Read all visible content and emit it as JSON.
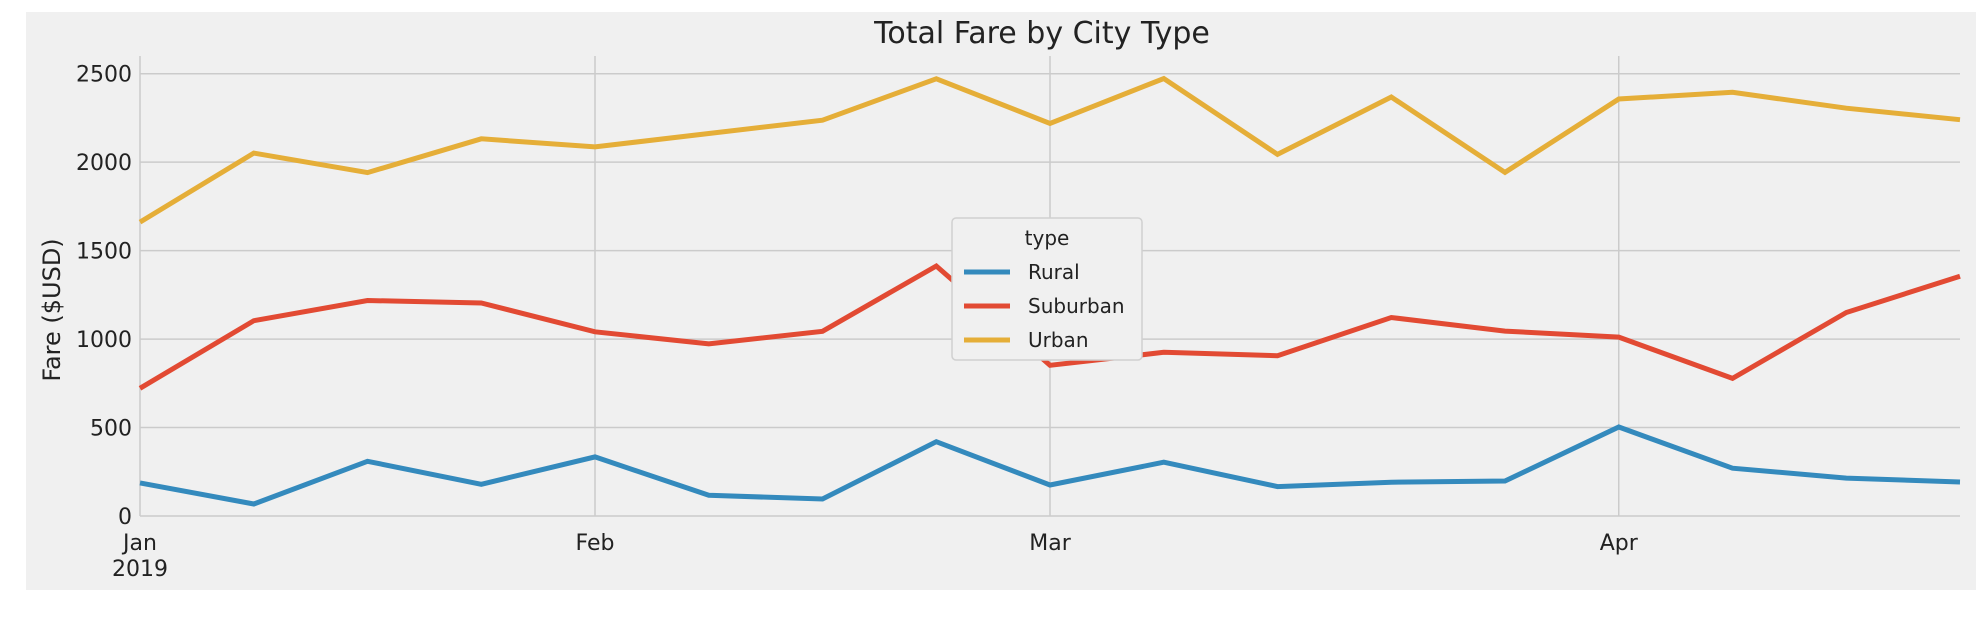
{
  "chart_data": {
    "type": "line",
    "title": "Total Fare by City Type",
    "xlabel": "",
    "ylabel": "Fare ($USD)",
    "x": [
      "2019-01-06",
      "2019-01-13",
      "2019-01-20",
      "2019-01-27",
      "2019-02-03",
      "2019-02-10",
      "2019-02-17",
      "2019-02-24",
      "2019-03-03",
      "2019-03-10",
      "2019-03-17",
      "2019-03-24",
      "2019-03-31",
      "2019-04-07",
      "2019-04-14",
      "2019-04-21",
      "2019-04-28"
    ],
    "ylim": [
      0,
      2600
    ],
    "yticks": [
      0,
      500,
      1000,
      1500,
      2000,
      2500
    ],
    "xticks": [
      {
        "date": "2019-01-06",
        "label": "Jan",
        "sublabel": "2019"
      },
      {
        "date": "2019-02-03",
        "label": "Feb",
        "sublabel": ""
      },
      {
        "date": "2019-03-03",
        "label": "Mar",
        "sublabel": ""
      },
      {
        "date": "2019-04-07",
        "label": "Apr",
        "sublabel": ""
      }
    ],
    "grid": true,
    "legend": {
      "title": "type",
      "position": "center"
    },
    "series": [
      {
        "name": "Rural",
        "color": "#348ABD",
        "values": [
          187,
          68,
          309,
          179,
          334,
          117,
          96,
          420,
          175,
          304,
          166,
          191,
          198,
          503,
          270,
          214,
          192
        ]
      },
      {
        "name": "Suburban",
        "color": "#E24A33",
        "values": [
          722,
          1104,
          1218,
          1204,
          1041,
          973,
          1044,
          1413,
          852,
          925,
          906,
          1122,
          1045,
          1011,
          778,
          1150,
          1355
        ]
      },
      {
        "name": "Urban",
        "color": "#E5AE38",
        "values": [
          1661,
          2051,
          1941,
          2132,
          2086,
          2162,
          2237,
          2471,
          2219,
          2473,
          2044,
          2368,
          1942,
          2357,
          2395,
          2305,
          2240
        ]
      }
    ]
  }
}
